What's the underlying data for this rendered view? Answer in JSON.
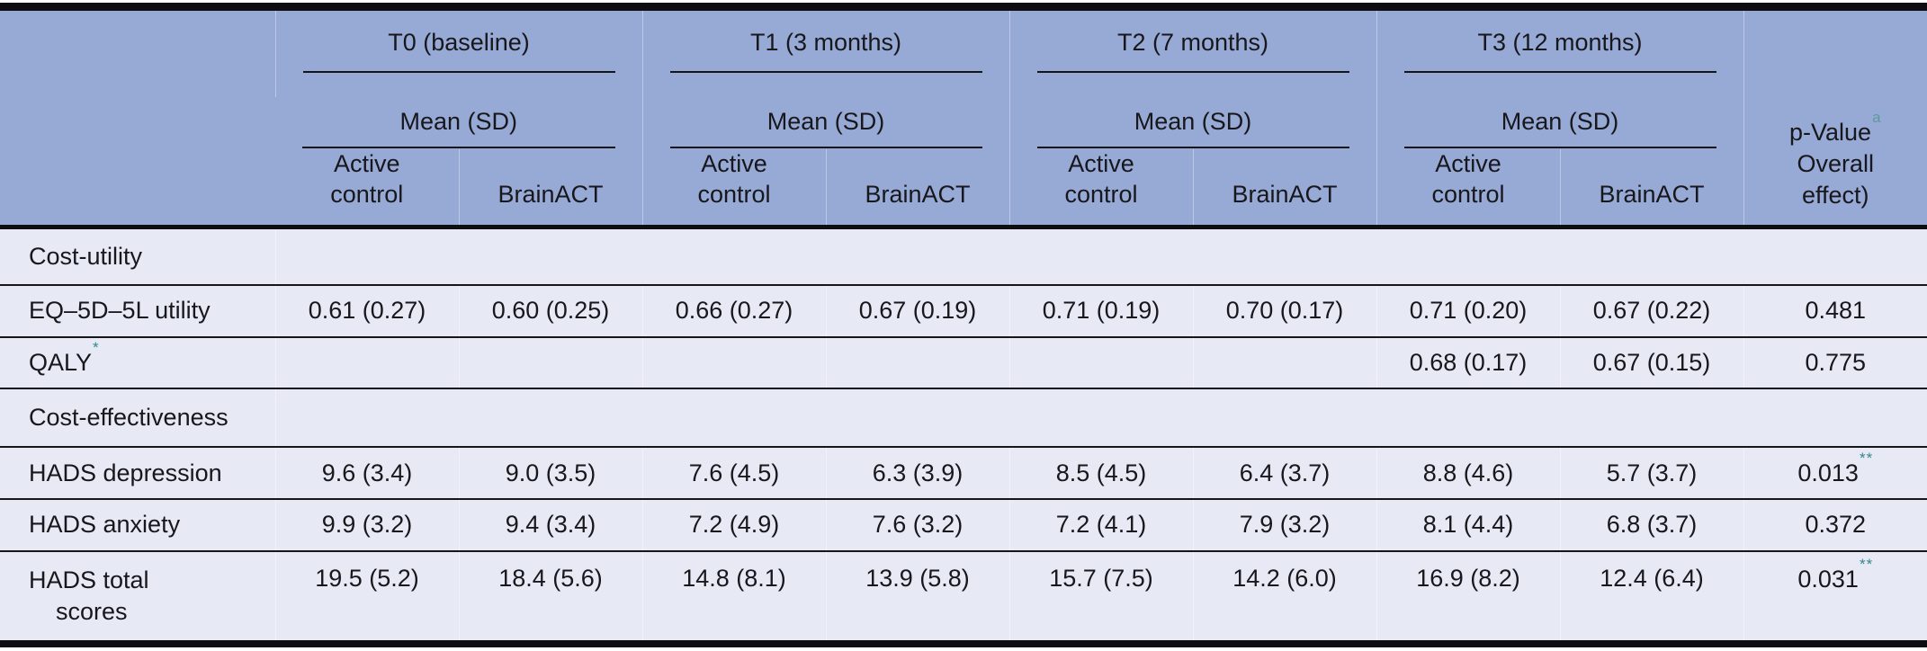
{
  "colors": {
    "header_bg": "#97a9d5",
    "body_bg": "#e7eaf4",
    "text": "#17171c",
    "rule_border": "#15151a",
    "thick_border": "#0e0e12",
    "superscript_a": "#5b9b9e",
    "asterisk": "#35878a"
  },
  "header": {
    "time_groups": [
      {
        "title": "T0 (baseline)",
        "stat": "Mean (SD)"
      },
      {
        "title": "T1 (3 months)",
        "stat": "Mean (SD)"
      },
      {
        "title": "T2 (7 months)",
        "stat": "Mean (SD)"
      },
      {
        "title": "T3 (12 months)",
        "stat": "Mean (SD)"
      }
    ],
    "arms": [
      "Active\ncontrol",
      "BrainACT"
    ],
    "p_col": {
      "line1": "p-Value",
      "sup": "a",
      "line2": "Overall",
      "line3": "effect)"
    }
  },
  "rows": {
    "section1": {
      "label": "Cost-utility"
    },
    "eq5d": {
      "label": "EQ–5D–5L utility",
      "values": [
        "0.61 (0.27)",
        "0.60 (0.25)",
        "0.66 (0.27)",
        "0.67 (0.19)",
        "0.71 (0.19)",
        "0.70 (0.17)",
        "0.71 (0.20)",
        "0.67 (0.22)"
      ],
      "p": "0.481"
    },
    "qaly": {
      "label": "QALY",
      "label_sup": "*",
      "values": [
        "",
        "",
        "",
        "",
        "",
        "",
        "0.68 (0.17)",
        "0.67 (0.15)"
      ],
      "p": "0.775"
    },
    "section2": {
      "label": "Cost-effectiveness"
    },
    "hads_depression": {
      "label": "HADS depression",
      "values": [
        "9.6 (3.4)",
        "9.0 (3.5)",
        "7.6 (4.5)",
        "6.3 (3.9)",
        "8.5 (4.5)",
        "6.4 (3.7)",
        "8.8 (4.6)",
        "5.7 (3.7)"
      ],
      "p": "0.013",
      "p_sup": "**"
    },
    "hads_anxiety": {
      "label": "HADS anxiety",
      "values": [
        "9.9 (3.2)",
        "9.4 (3.4)",
        "7.2 (4.9)",
        "7.6 (3.2)",
        "7.2 (4.1)",
        "7.9 (3.2)",
        "8.1 (4.4)",
        "6.8 (3.7)"
      ],
      "p": "0.372"
    },
    "hads_total": {
      "label": "HADS total",
      "label_line2": "scores",
      "values": [
        "19.5 (5.2)",
        "18.4 (5.6)",
        "14.8 (8.1)",
        "13.9 (5.8)",
        "15.7 (7.5)",
        "14.2 (6.0)",
        "16.9 (8.2)",
        "12.4 (6.4)"
      ],
      "p": "0.031",
      "p_sup": "**"
    }
  }
}
